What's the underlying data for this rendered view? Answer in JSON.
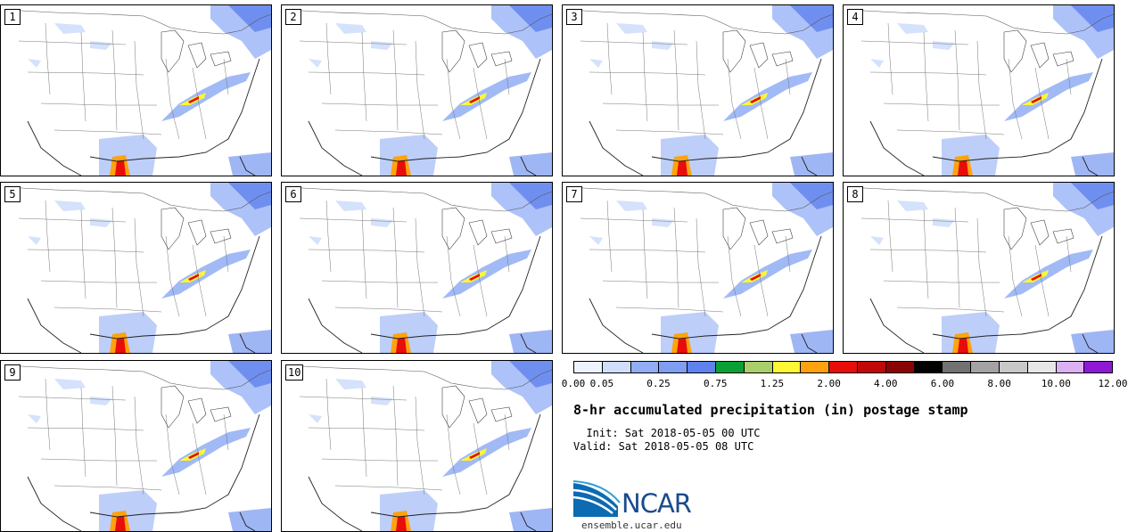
{
  "panels": [
    {
      "label": "1"
    },
    {
      "label": "2"
    },
    {
      "label": "3"
    },
    {
      "label": "4"
    },
    {
      "label": "5"
    },
    {
      "label": "6"
    },
    {
      "label": "7"
    },
    {
      "label": "8"
    },
    {
      "label": "9"
    },
    {
      "label": "10"
    }
  ],
  "colorbar": {
    "colors": [
      "#eef4fe",
      "#cfdffb",
      "#91aef5",
      "#7f9ef2",
      "#5f82ed",
      "#0aa035",
      "#a9cf6a",
      "#fef736",
      "#fea20e",
      "#e80c0a",
      "#c10808",
      "#8a0404",
      "#020202",
      "#727272",
      "#a3a3a3",
      "#c8c8c8",
      "#e7e7e7",
      "#dbb1f4",
      "#8e1ad6"
    ],
    "labels": [
      "0.00",
      "0.05",
      "0.25",
      "0.75",
      "1.25",
      "2.00",
      "4.00",
      "6.00",
      "8.00",
      "10.00",
      "12.00"
    ]
  },
  "title": "8-hr accumulated precipitation (in) postage stamp",
  "init": "  Init: Sat 2018-05-05 00 UTC",
  "valid": "Valid: Sat 2018-05-05 08 UTC",
  "logo": {
    "name": "NCAR",
    "url": "ensemble.ucar.edu"
  }
}
